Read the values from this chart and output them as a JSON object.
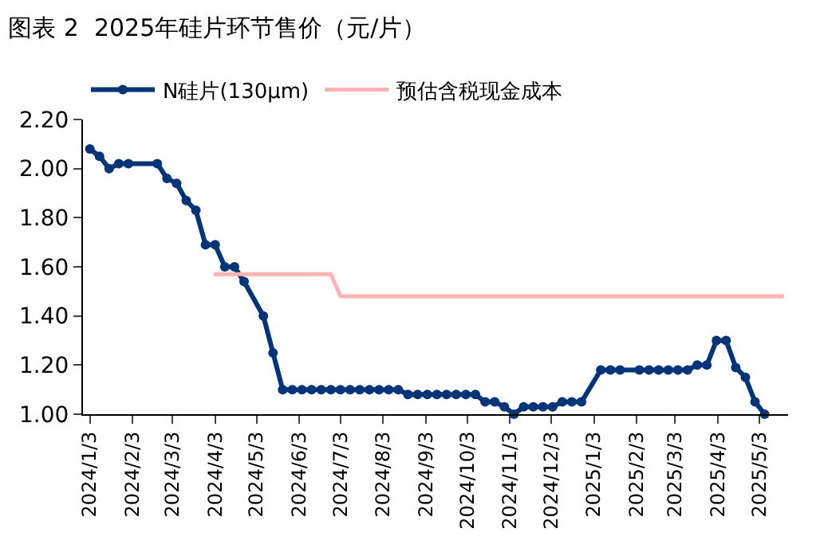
{
  "chart_data": {
    "type": "line",
    "title": "图表 2  2025年硅片环节售价（元/片）",
    "series": [
      {
        "name": "N硅片(130μm)",
        "color": "#003478",
        "marker": "circle",
        "x": [
          "2024-01-03",
          "2024-01-10",
          "2024-01-17",
          "2024-01-24",
          "2024-01-31",
          "2024-02-21",
          "2024-02-28",
          "2024-03-06",
          "2024-03-13",
          "2024-03-20",
          "2024-03-27",
          "2024-04-03",
          "2024-04-10",
          "2024-04-17",
          "2024-04-24",
          "2024-05-08",
          "2024-05-15",
          "2024-05-22",
          "2024-05-29",
          "2024-06-05",
          "2024-06-12",
          "2024-06-19",
          "2024-06-26",
          "2024-07-03",
          "2024-07-10",
          "2024-07-17",
          "2024-07-24",
          "2024-07-31",
          "2024-08-07",
          "2024-08-14",
          "2024-08-21",
          "2024-08-28",
          "2024-09-04",
          "2024-09-11",
          "2024-09-18",
          "2024-09-25",
          "2024-10-02",
          "2024-10-09",
          "2024-10-16",
          "2024-10-23",
          "2024-10-30",
          "2024-11-06",
          "2024-11-13",
          "2024-11-20",
          "2024-11-27",
          "2024-12-04",
          "2024-12-11",
          "2024-12-18",
          "2024-12-25",
          "2025-01-08",
          "2025-01-15",
          "2025-01-22",
          "2025-02-05",
          "2025-02-12",
          "2025-02-19",
          "2025-02-26",
          "2025-03-05",
          "2025-03-12",
          "2025-03-19",
          "2025-03-26",
          "2025-04-02",
          "2025-04-09",
          "2025-04-16",
          "2025-04-23",
          "2025-04-30",
          "2025-05-07"
        ],
        "values": [
          2.08,
          2.05,
          2.0,
          2.02,
          2.02,
          2.02,
          1.96,
          1.94,
          1.87,
          1.83,
          1.69,
          1.69,
          1.6,
          1.6,
          1.54,
          1.4,
          1.25,
          1.1,
          1.1,
          1.1,
          1.1,
          1.1,
          1.1,
          1.1,
          1.1,
          1.1,
          1.1,
          1.1,
          1.1,
          1.1,
          1.08,
          1.08,
          1.08,
          1.08,
          1.08,
          1.08,
          1.08,
          1.08,
          1.05,
          1.05,
          1.03,
          1.0,
          1.03,
          1.03,
          1.03,
          1.03,
          1.05,
          1.05,
          1.05,
          1.18,
          1.18,
          1.18,
          1.18,
          1.18,
          1.18,
          1.18,
          1.18,
          1.18,
          1.2,
          1.2,
          1.3,
          1.3,
          1.19,
          1.15,
          1.05,
          1.0
        ]
      },
      {
        "name": "预估含税现金成本",
        "color": "#ffb3b3",
        "marker": "none",
        "x": [
          "2024-04-02",
          "2024-06-26",
          "2024-07-03",
          "2025-05-21"
        ],
        "values": [
          1.57,
          1.57,
          1.48,
          1.48
        ]
      }
    ],
    "xlim": [
      "2023-12-29",
      "2025-05-24"
    ],
    "xticks": [
      {
        "value": "2024-01-03",
        "label": "2024/1/3"
      },
      {
        "value": "2024-02-03",
        "label": "2024/2/3"
      },
      {
        "value": "2024-03-03",
        "label": "2024/3/3"
      },
      {
        "value": "2024-04-03",
        "label": "2024/4/3"
      },
      {
        "value": "2024-05-03",
        "label": "2024/5/3"
      },
      {
        "value": "2024-06-03",
        "label": "2024/6/3"
      },
      {
        "value": "2024-07-03",
        "label": "2024/7/3"
      },
      {
        "value": "2024-08-03",
        "label": "2024/8/3"
      },
      {
        "value": "2024-09-03",
        "label": "2024/9/3"
      },
      {
        "value": "2024-10-03",
        "label": "2024/10/3"
      },
      {
        "value": "2024-11-03",
        "label": "2024/11/3"
      },
      {
        "value": "2024-12-03",
        "label": "2024/12/3"
      },
      {
        "value": "2025-01-03",
        "label": "2025/1/3"
      },
      {
        "value": "2025-02-03",
        "label": "2025/2/3"
      },
      {
        "value": "2025-03-03",
        "label": "2025/3/3"
      },
      {
        "value": "2025-04-03",
        "label": "2025/4/3"
      },
      {
        "value": "2025-05-03",
        "label": "2025/5/3"
      }
    ],
    "ylim": [
      1.0,
      2.2
    ],
    "yticks": [
      {
        "value": 1.0,
        "label": "1.00"
      },
      {
        "value": 1.2,
        "label": "1.20"
      },
      {
        "value": 1.4,
        "label": "1.40"
      },
      {
        "value": 1.6,
        "label": "1.60"
      },
      {
        "value": 1.8,
        "label": "1.80"
      },
      {
        "value": 2.0,
        "label": "2.00"
      },
      {
        "value": 2.2,
        "label": "2.20"
      }
    ],
    "legend": "top",
    "line_style": "solid"
  }
}
